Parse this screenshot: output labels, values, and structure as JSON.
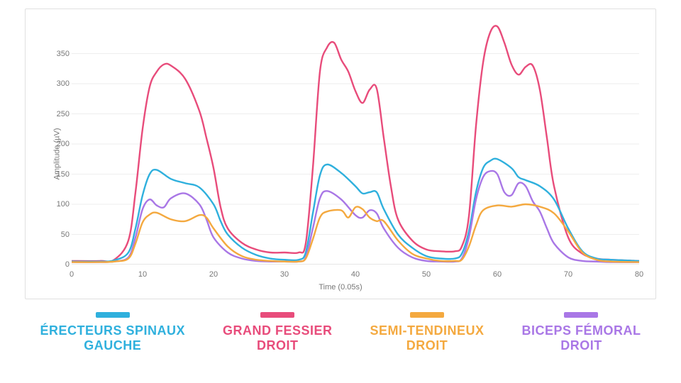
{
  "chart": {
    "type": "line",
    "xlabel": "Time (0.05s)",
    "ylabel": "Amplitude (µV)",
    "label_fontsize": 11,
    "label_color": "#777777",
    "background_color": "#ffffff",
    "panel_border_color": "#e0e0e0",
    "grid_color": "#eeeeee",
    "xlim": [
      0,
      80
    ],
    "ylim": [
      0,
      400
    ],
    "xticks": [
      0,
      10,
      20,
      30,
      40,
      50,
      60,
      70,
      80
    ],
    "yticks": [
      0,
      50,
      100,
      150,
      200,
      250,
      300,
      350
    ],
    "line_width": 2.4,
    "series": [
      {
        "name": "Grand Fessier Droit",
        "color": "#e84c7b",
        "x": [
          0,
          4,
          6,
          8,
          9,
          10,
          11,
          12,
          13,
          14,
          16,
          18,
          19,
          20,
          21,
          22,
          24,
          26,
          28,
          30,
          32,
          33,
          34,
          35,
          36,
          37,
          38,
          39,
          40,
          41,
          42,
          43,
          44,
          45,
          46,
          48,
          50,
          52,
          54,
          55,
          56,
          57,
          58,
          59,
          60,
          61,
          62,
          63,
          64,
          65,
          66,
          67,
          68,
          70,
          72,
          74,
          76,
          80
        ],
        "y": [
          6,
          6,
          8,
          40,
          120,
          225,
          295,
          320,
          332,
          330,
          308,
          255,
          210,
          160,
          95,
          60,
          36,
          25,
          20,
          20,
          20,
          35,
          160,
          320,
          360,
          368,
          340,
          320,
          288,
          268,
          290,
          292,
          210,
          130,
          75,
          40,
          25,
          22,
          22,
          30,
          80,
          230,
          335,
          385,
          395,
          368,
          332,
          315,
          328,
          330,
          290,
          210,
          130,
          45,
          18,
          10,
          8,
          6
        ]
      },
      {
        "name": "Érecteurs Spinaux Gauche",
        "color": "#2fb0dd",
        "x": [
          0,
          4,
          6,
          8,
          9,
          10,
          11,
          12,
          14,
          16,
          18,
          20,
          21,
          22,
          24,
          26,
          28,
          30,
          32,
          33,
          34,
          35,
          36,
          38,
          40,
          41,
          42,
          43,
          44,
          46,
          48,
          50,
          52,
          54,
          55,
          56,
          57,
          58,
          59,
          60,
          62,
          63,
          64,
          66,
          68,
          70,
          72,
          74,
          76,
          80
        ],
        "y": [
          5,
          5,
          7,
          20,
          60,
          115,
          150,
          157,
          142,
          135,
          128,
          100,
          72,
          50,
          28,
          16,
          10,
          8,
          8,
          20,
          85,
          148,
          166,
          152,
          130,
          118,
          120,
          120,
          92,
          50,
          28,
          14,
          10,
          10,
          18,
          55,
          120,
          160,
          172,
          175,
          160,
          145,
          140,
          130,
          108,
          60,
          22,
          10,
          8,
          6
        ]
      },
      {
        "name": "Biceps Fémoral Droit",
        "color": "#a977e6",
        "x": [
          0,
          4,
          6,
          8,
          9,
          10,
          11,
          12,
          13,
          14,
          16,
          18,
          19,
          20,
          22,
          24,
          26,
          28,
          30,
          32,
          33,
          34,
          35,
          36,
          38,
          40,
          41,
          42,
          43,
          44,
          46,
          48,
          50,
          52,
          54,
          55,
          56,
          57,
          58,
          59,
          60,
          61,
          62,
          63,
          64,
          65,
          66,
          67,
          68,
          70,
          72,
          74,
          76,
          80
        ],
        "y": [
          4,
          4,
          5,
          12,
          45,
          92,
          108,
          98,
          95,
          110,
          118,
          100,
          75,
          45,
          20,
          10,
          6,
          5,
          5,
          5,
          12,
          60,
          110,
          122,
          108,
          82,
          78,
          90,
          85,
          60,
          28,
          12,
          6,
          5,
          5,
          10,
          45,
          108,
          145,
          155,
          150,
          120,
          115,
          135,
          130,
          105,
          88,
          60,
          35,
          12,
          6,
          5,
          4,
          4
        ]
      },
      {
        "name": "Semi-Tendineux Droit",
        "color": "#f4a93f",
        "x": [
          0,
          4,
          6,
          8,
          9,
          10,
          11,
          12,
          14,
          16,
          18,
          19,
          20,
          22,
          24,
          26,
          28,
          30,
          32,
          33,
          34,
          35,
          36,
          38,
          39,
          40,
          41,
          42,
          43,
          44,
          46,
          48,
          50,
          52,
          54,
          55,
          56,
          57,
          58,
          60,
          62,
          64,
          66,
          68,
          70,
          72,
          74,
          76,
          80
        ],
        "y": [
          4,
          4,
          5,
          10,
          35,
          70,
          83,
          86,
          75,
          72,
          82,
          78,
          60,
          30,
          14,
          8,
          6,
          5,
          5,
          10,
          42,
          78,
          88,
          90,
          78,
          95,
          92,
          78,
          72,
          72,
          40,
          18,
          10,
          6,
          6,
          8,
          30,
          65,
          90,
          98,
          96,
          100,
          96,
          85,
          55,
          20,
          8,
          5,
          4
        ]
      }
    ]
  },
  "legend": {
    "swatch_width": 48,
    "swatch_height": 8,
    "font_weight": 700,
    "font_size": 18,
    "items": [
      {
        "label": "ÉRECTEURS SPINAUX\nGAUCHE",
        "color": "#2fb0dd"
      },
      {
        "label": "GRAND FESSIER\nDROIT",
        "color": "#e84c7b"
      },
      {
        "label": "SEMI-TENDINEUX\nDROIT",
        "color": "#f4a93f"
      },
      {
        "label": "BICEPS FÉMORAL\nDROIT",
        "color": "#a977e6"
      }
    ]
  }
}
